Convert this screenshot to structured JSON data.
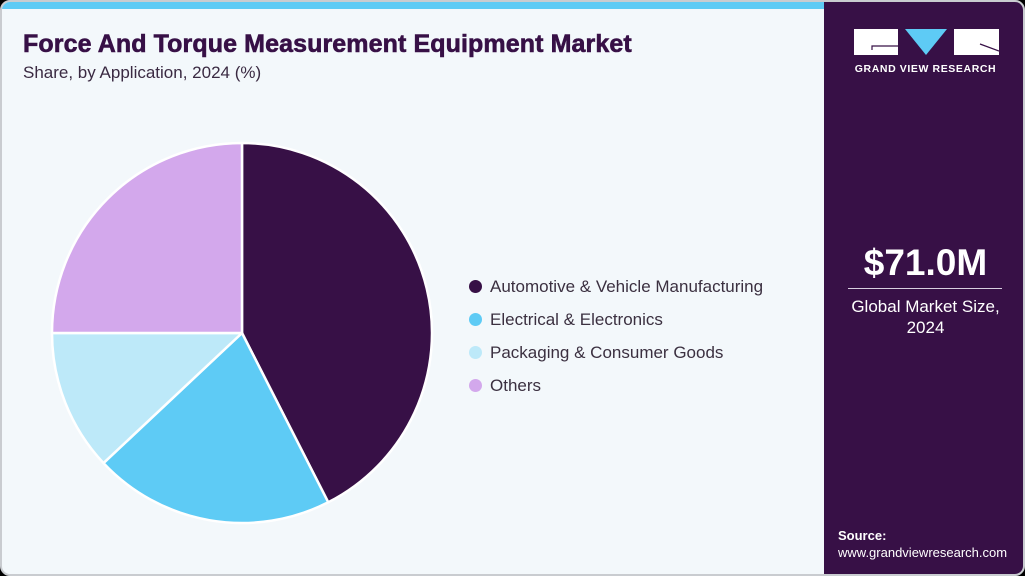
{
  "header": {
    "title": "Force And Torque Measurement Equipment Market",
    "subtitle": "Share, by Application, 2024 (%)"
  },
  "colors": {
    "accent_bar": "#5ecbf5",
    "brand_dark": "#371046",
    "background": "#f3f8fb"
  },
  "legend": {
    "items": [
      {
        "label": "Automotive & Vehicle Manufacturing",
        "color": "#371046"
      },
      {
        "label": "Electrical & Electronics",
        "color": "#5ecbf5"
      },
      {
        "label": "Packaging & Consumer Goods",
        "color": "#bde9f9"
      },
      {
        "label": "Others",
        "color": "#d3a8ec"
      }
    ]
  },
  "side_panel": {
    "logo_text": "GRAND VIEW RESEARCH",
    "market_value": "$71.0M",
    "market_label_line1": "Global Market Size,",
    "market_label_line2": "2024",
    "source_label": "Source:",
    "source_url": "www.grandviewresearch.com"
  },
  "chart_data": {
    "type": "pie",
    "title": "Force And Torque Measurement Equipment Market",
    "subtitle": "Share, by Application, 2024 (%)",
    "categories": [
      "Automotive & Vehicle Manufacturing",
      "Electrical & Electronics",
      "Packaging & Consumer Goods",
      "Others"
    ],
    "values": [
      42.5,
      20.5,
      12.0,
      25.0
    ],
    "colors": [
      "#371046",
      "#5ecbf5",
      "#bde9f9",
      "#d3a8ec"
    ],
    "start_angle_deg": 0,
    "direction": "clockwise from 12 o'clock",
    "legend_position": "right",
    "data_labels": false
  }
}
